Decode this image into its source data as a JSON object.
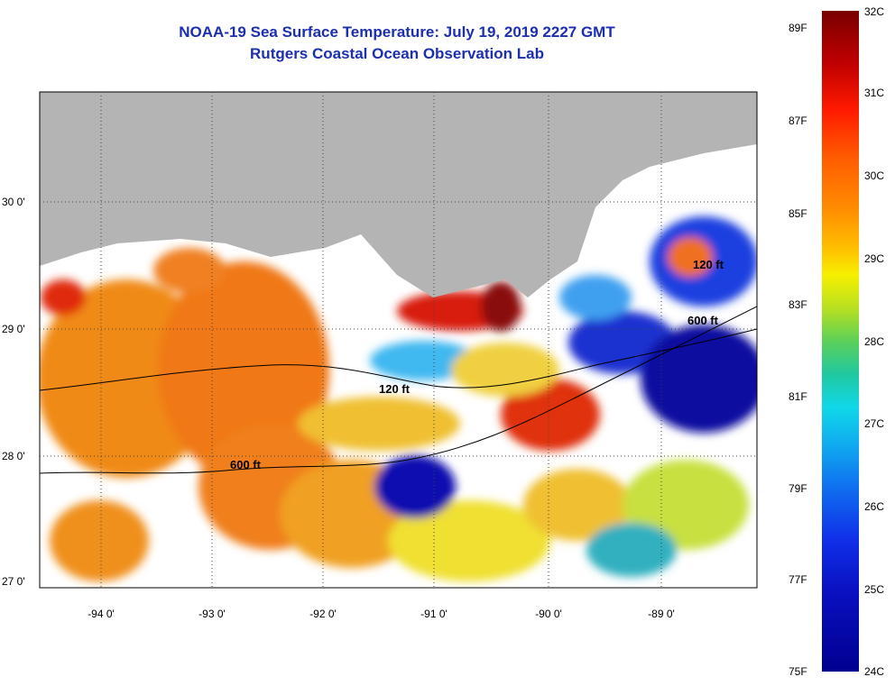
{
  "title_line1": "NOAA-19 Sea Surface Temperature:  July 19, 2019 2227 GMT",
  "title_line2": "Rutgers Coastal Ocean Observation Lab",
  "lat_labels": [
    "30 0'",
    "29 0'",
    "28 0'",
    "27 0'"
  ],
  "lon_labels": [
    "-94 0'",
    "-93 0'",
    "-92 0'",
    "-91 0'",
    "-90 0'",
    "-89 0'"
  ],
  "contours": [
    "120 ft",
    "600 ft",
    "600 ft",
    "120 ft"
  ],
  "colorbar": {
    "f_labels": [
      "89F",
      "87F",
      "85F",
      "83F",
      "81F",
      "79F",
      "77F",
      "75F"
    ],
    "c_labels": [
      "32C",
      "31C",
      "30C",
      "29C",
      "28C",
      "27C",
      "26C",
      "25C",
      "24C"
    ]
  },
  "colors": {
    "title": "#1c2fb0",
    "land": "#b4b4b4",
    "clouds": "#ffffff"
  }
}
